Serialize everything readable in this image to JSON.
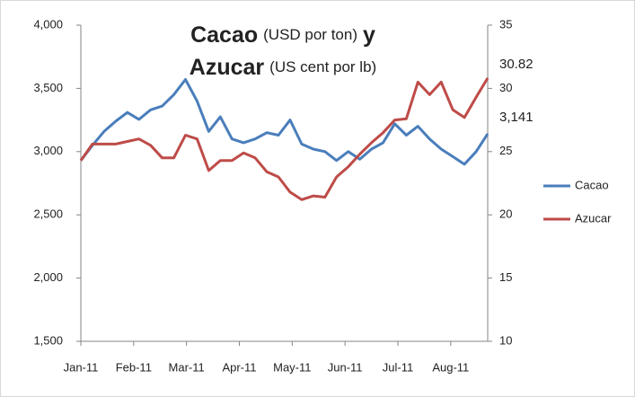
{
  "chart_data": {
    "type": "line",
    "title": [
      [
        "Cacao",
        "(USD por ton)",
        "y"
      ],
      [
        "Azucar",
        "(US cent por lb)"
      ]
    ],
    "x": [
      0,
      0.22,
      0.44,
      0.66,
      0.88,
      1.1,
      1.32,
      1.54,
      1.76,
      1.98,
      2.2,
      2.42,
      2.64,
      2.86,
      3.08,
      3.3,
      3.52,
      3.74,
      3.96,
      4.18,
      4.4,
      4.62,
      4.84,
      5.06,
      5.28,
      5.5,
      5.72,
      5.94,
      6.16,
      6.38,
      6.6,
      6.82,
      7.04,
      7.26,
      7.48,
      7.7
    ],
    "xlim": [
      0,
      7.7
    ],
    "xticks": [
      {
        "value": 0,
        "label": "Jan-11"
      },
      {
        "value": 1,
        "label": "Feb-11"
      },
      {
        "value": 2,
        "label": "Mar-11"
      },
      {
        "value": 3,
        "label": "Apr-11"
      },
      {
        "value": 4,
        "label": "May-11"
      },
      {
        "value": 5,
        "label": "Jun-11"
      },
      {
        "value": 6,
        "label": "Jul-11"
      },
      {
        "value": 7,
        "label": "Aug-11"
      }
    ],
    "ylim": [
      1500,
      4000
    ],
    "yticks": [
      {
        "value": 1500,
        "label": "1,500"
      },
      {
        "value": 2000,
        "label": "2,000"
      },
      {
        "value": 2500,
        "label": "2,500"
      },
      {
        "value": 3000,
        "label": "3,000"
      },
      {
        "value": 3500,
        "label": "3,500"
      },
      {
        "value": 4000,
        "label": "4,000"
      }
    ],
    "y2lim": [
      10,
      35
    ],
    "y2ticks": [
      10,
      15,
      20,
      25,
      30,
      35
    ],
    "series": [
      {
        "name": "Cacao",
        "color": "#4a7ebb",
        "values": [
          2930,
          3050,
          3160,
          3240,
          3310,
          3255,
          3330,
          3360,
          3450,
          3570,
          3400,
          3160,
          3275,
          3100,
          3070,
          3100,
          3150,
          3130,
          3250,
          3060,
          3020,
          3000,
          2930,
          3000,
          2940,
          3020,
          3070,
          3220,
          3130,
          3200,
          3100,
          3020,
          2960,
          2900,
          3000,
          3141
        ]
      },
      {
        "name": "Azucar",
        "color": "#be4b48",
        "axis": "y2",
        "values": [
          24.3,
          25.6,
          25.6,
          25.6,
          25.8,
          26.0,
          25.5,
          24.5,
          24.5,
          26.3,
          26.0,
          23.5,
          24.3,
          24.3,
          24.9,
          24.5,
          23.4,
          23.0,
          21.8,
          21.2,
          21.5,
          21.4,
          23.0,
          23.8,
          24.8,
          25.7,
          26.5,
          27.5,
          27.6,
          30.5,
          29.5,
          30.5,
          28.3,
          27.7,
          29.3,
          30.82
        ]
      }
    ],
    "annotations": [
      "30.82",
      "3,141"
    ],
    "legend": "right"
  }
}
